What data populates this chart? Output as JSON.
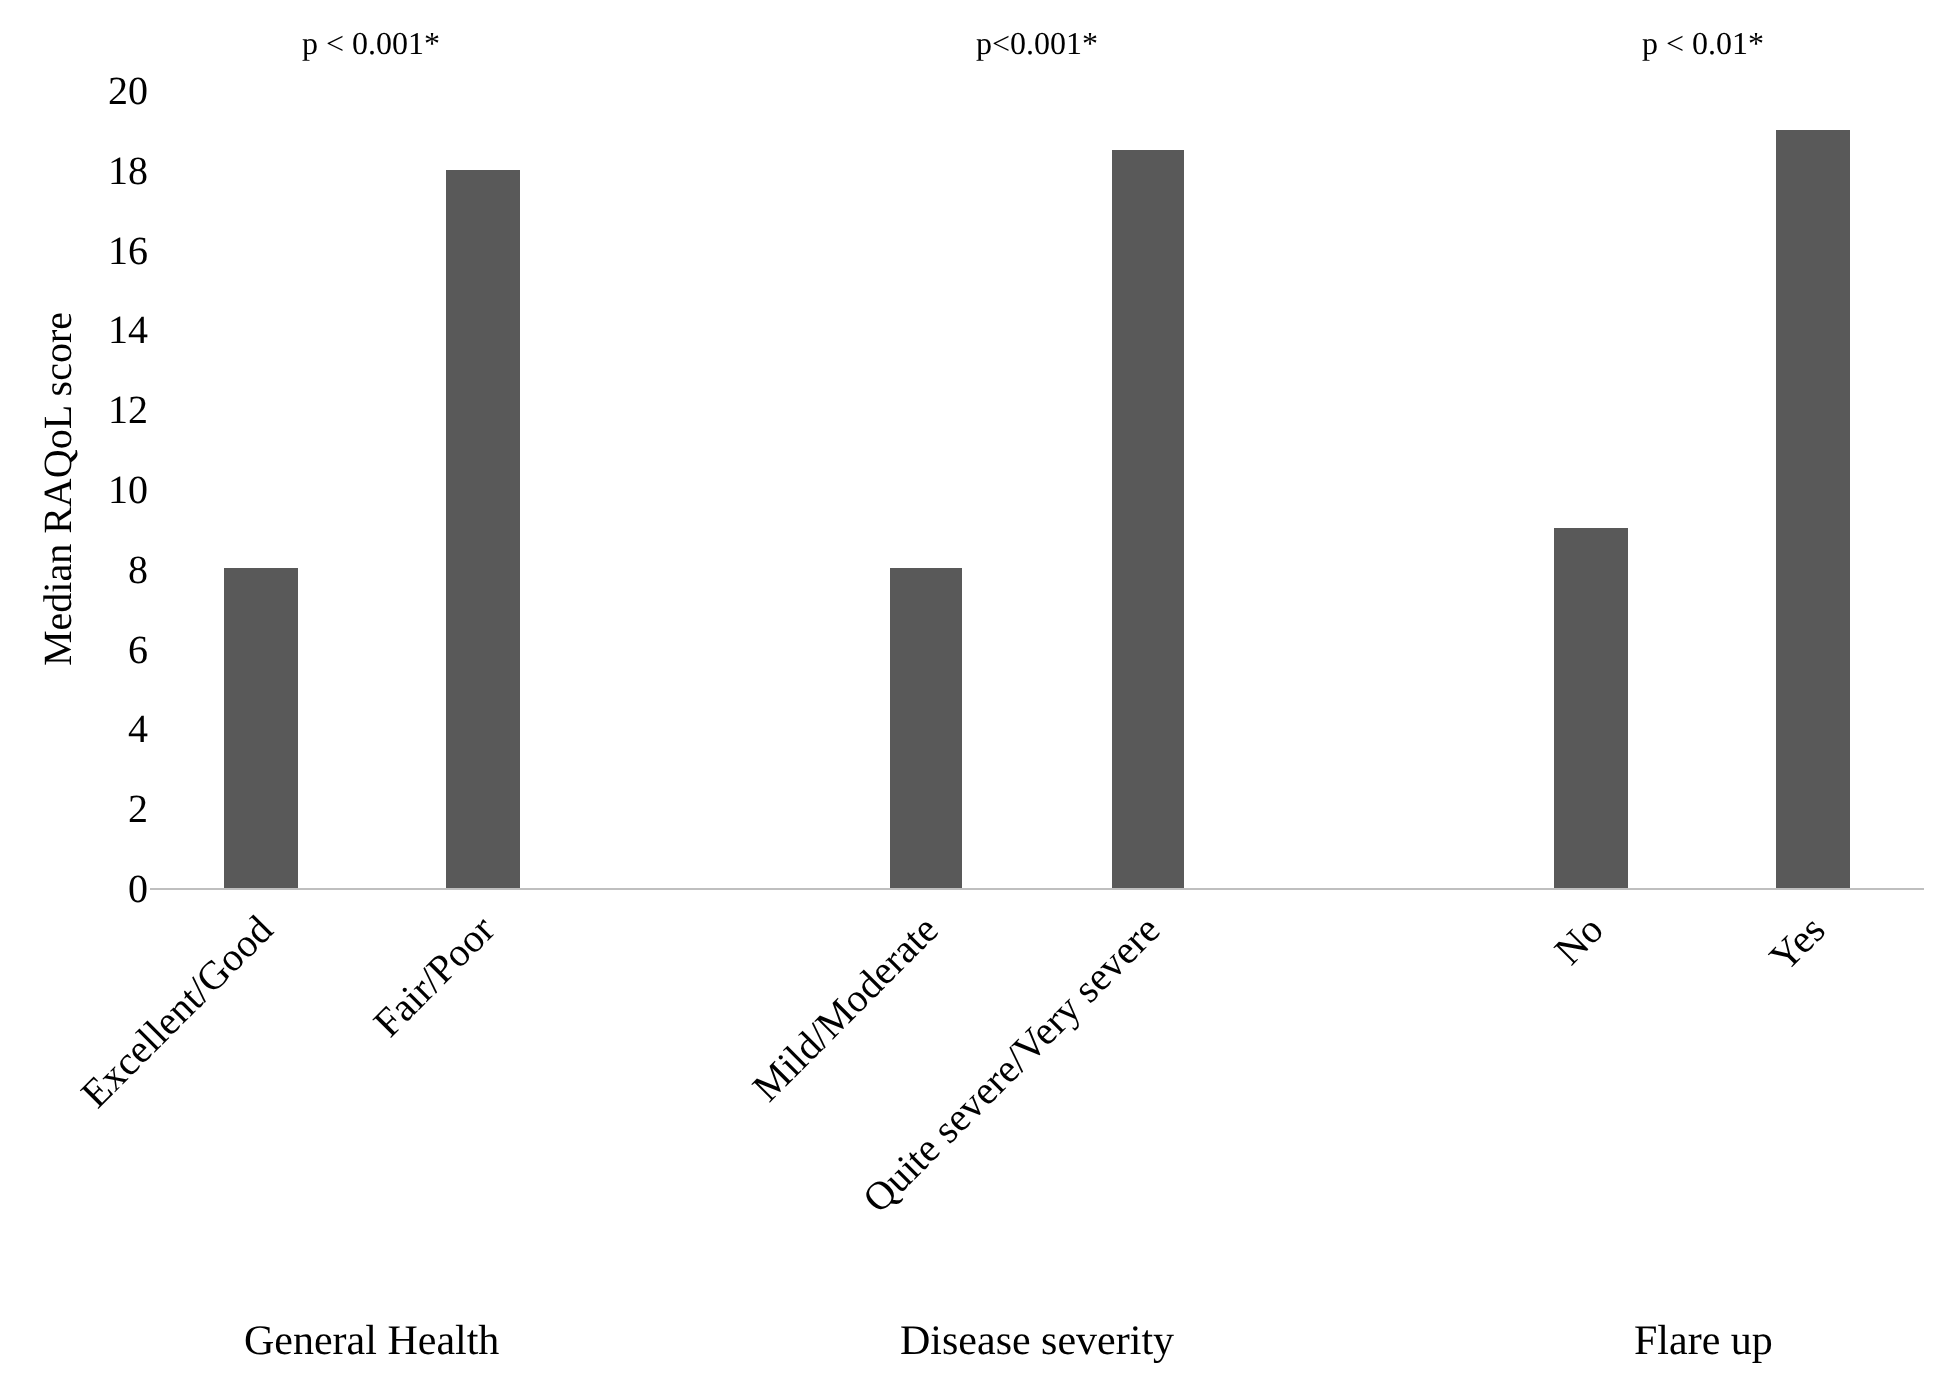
{
  "chart_data": {
    "type": "bar",
    "ylabel": "Median RAQoL score",
    "categories": [
      "Excellent/Good",
      "Fair/Poor",
      null,
      "Mild/Moderate",
      "Quite severe/Very severe",
      null,
      "No",
      "Yes"
    ],
    "values": [
      8,
      18,
      null,
      8,
      18.5,
      null,
      9,
      19
    ],
    "color": "#595959",
    "ylim": [
      0,
      20
    ],
    "yticks": [
      0,
      2,
      4,
      6,
      8,
      10,
      12,
      14,
      16,
      18,
      20
    ],
    "grid": false,
    "legend": false,
    "annotations": [
      "p < 0.001*",
      "p<0.001*",
      "p < 0.01*",
      "General Health",
      "Disease severity",
      "Flare up"
    ]
  }
}
